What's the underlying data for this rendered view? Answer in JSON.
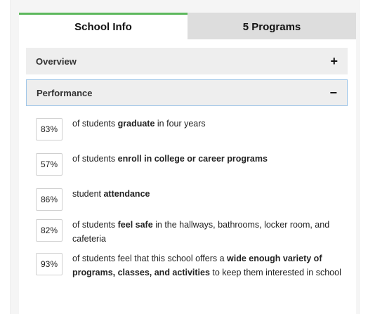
{
  "tabs": [
    {
      "label": "School Info",
      "active": true
    },
    {
      "label": "5 Programs",
      "active": false
    }
  ],
  "accordion": {
    "overview": {
      "label": "Overview",
      "sign": "+"
    },
    "performance": {
      "label": "Performance",
      "sign": "−"
    }
  },
  "stats": [
    {
      "value": "83%",
      "segments": [
        {
          "t": "of students ",
          "b": false
        },
        {
          "t": "graduate",
          "b": true
        },
        {
          "t": " in four years",
          "b": false
        }
      ]
    },
    {
      "value": "57%",
      "segments": [
        {
          "t": "of students ",
          "b": false
        },
        {
          "t": "enroll in college or career programs",
          "b": true
        }
      ]
    },
    {
      "value": "86%",
      "segments": [
        {
          "t": "student ",
          "b": false
        },
        {
          "t": "attendance",
          "b": true
        }
      ]
    },
    {
      "value": "82%",
      "segments": [
        {
          "t": "of students ",
          "b": false
        },
        {
          "t": "feel safe",
          "b": true
        },
        {
          "t": " in the hallways, bathrooms, locker room, and cafeteria",
          "b": false
        }
      ]
    },
    {
      "value": "93%",
      "segments": [
        {
          "t": "of students feel that this school offers a ",
          "b": false
        },
        {
          "t": "wide enough variety of programs, classes, and activities",
          "b": true
        },
        {
          "t": " to keep them interested in school",
          "b": false
        }
      ]
    }
  ],
  "colors": {
    "active_tab_accent": "#5cb85c",
    "open_header_border": "#9ec5e8"
  }
}
